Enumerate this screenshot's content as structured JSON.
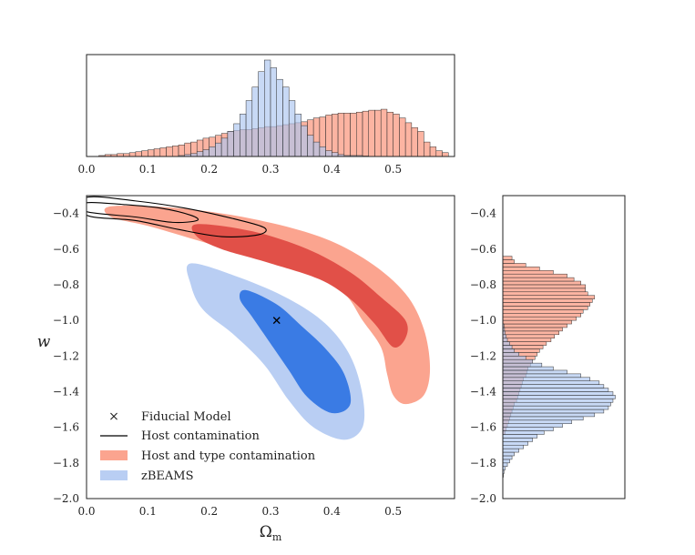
{
  "chart_data": [
    {
      "id": "top_histogram",
      "type": "histogram",
      "xlim": [
        0.0,
        0.6
      ],
      "xticks": [
        "0.0",
        "0.1",
        "0.2",
        "0.3",
        "0.4",
        "0.5"
      ],
      "bin_width": 0.01,
      "series": [
        {
          "name": "Host and type contamination",
          "color": "#fa8c70",
          "bins_start": 0.02,
          "density": [
            0.01,
            0.02,
            0.02,
            0.03,
            0.03,
            0.04,
            0.05,
            0.06,
            0.07,
            0.08,
            0.09,
            0.1,
            0.11,
            0.12,
            0.14,
            0.15,
            0.17,
            0.19,
            0.2,
            0.22,
            0.24,
            0.26,
            0.27,
            0.28,
            0.28,
            0.29,
            0.3,
            0.31,
            0.31,
            0.32,
            0.33,
            0.34,
            0.35,
            0.36,
            0.38,
            0.4,
            0.41,
            0.43,
            0.44,
            0.45,
            0.45,
            0.45,
            0.46,
            0.47,
            0.48,
            0.48,
            0.49,
            0.46,
            0.44,
            0.4,
            0.35,
            0.3,
            0.26,
            0.15,
            0.1,
            0.06,
            0.04
          ]
        },
        {
          "name": "zBEAMS",
          "color": "#aac4f0",
          "bins_start": 0.15,
          "density": [
            0.01,
            0.02,
            0.03,
            0.05,
            0.07,
            0.1,
            0.14,
            0.19,
            0.26,
            0.34,
            0.44,
            0.58,
            0.72,
            0.88,
            1.0,
            0.92,
            0.8,
            0.72,
            0.58,
            0.44,
            0.32,
            0.22,
            0.15,
            0.1,
            0.06,
            0.04,
            0.02,
            0.01,
            0.01,
            0.01,
            0.005
          ]
        }
      ]
    },
    {
      "id": "main_contour",
      "type": "contour",
      "xlabel": "Ω_m",
      "ylabel": "w",
      "xlim": [
        0.0,
        0.6
      ],
      "ylim": [
        -2.0,
        -0.3
      ],
      "xticks": [
        "0.0",
        "0.1",
        "0.2",
        "0.3",
        "0.4",
        "0.5"
      ],
      "yticks": [
        "−2.0",
        "−1.8",
        "−1.6",
        "−1.4",
        "−1.2",
        "−1.0",
        "−0.8",
        "−0.6",
        "−0.4"
      ],
      "fiducial": {
        "omega_m": 0.31,
        "w": -1.0
      },
      "contours": {
        "host_type_outer": [
          [
            0.04,
            -0.36
          ],
          [
            0.15,
            -0.37
          ],
          [
            0.27,
            -0.43
          ],
          [
            0.38,
            -0.53
          ],
          [
            0.46,
            -0.67
          ],
          [
            0.52,
            -0.85
          ],
          [
            0.55,
            -1.05
          ],
          [
            0.56,
            -1.27
          ],
          [
            0.55,
            -1.42
          ],
          [
            0.52,
            -1.47
          ],
          [
            0.5,
            -1.42
          ],
          [
            0.49,
            -1.3
          ],
          [
            0.48,
            -1.15
          ],
          [
            0.45,
            -1.0
          ],
          [
            0.42,
            -0.85
          ],
          [
            0.36,
            -0.73
          ],
          [
            0.27,
            -0.64
          ],
          [
            0.18,
            -0.55
          ],
          [
            0.1,
            -0.47
          ],
          [
            0.04,
            -0.42
          ]
        ],
        "host_type_inner": [
          [
            0.18,
            -0.46
          ],
          [
            0.27,
            -0.5
          ],
          [
            0.36,
            -0.6
          ],
          [
            0.43,
            -0.73
          ],
          [
            0.48,
            -0.87
          ],
          [
            0.52,
            -1.0
          ],
          [
            0.52,
            -1.1
          ],
          [
            0.5,
            -1.15
          ],
          [
            0.47,
            -1.02
          ],
          [
            0.43,
            -0.88
          ],
          [
            0.38,
            -0.77
          ],
          [
            0.3,
            -0.68
          ],
          [
            0.22,
            -0.6
          ],
          [
            0.18,
            -0.53
          ]
        ],
        "zbeams_outer": [
          [
            0.17,
            -0.68
          ],
          [
            0.25,
            -0.76
          ],
          [
            0.33,
            -0.88
          ],
          [
            0.39,
            -1.02
          ],
          [
            0.43,
            -1.2
          ],
          [
            0.45,
            -1.42
          ],
          [
            0.45,
            -1.6
          ],
          [
            0.42,
            -1.67
          ],
          [
            0.37,
            -1.6
          ],
          [
            0.33,
            -1.45
          ],
          [
            0.29,
            -1.25
          ],
          [
            0.24,
            -1.08
          ],
          [
            0.19,
            -0.94
          ],
          [
            0.17,
            -0.8
          ]
        ],
        "zbeams_inner": [
          [
            0.26,
            -0.83
          ],
          [
            0.31,
            -0.91
          ],
          [
            0.35,
            -1.03
          ],
          [
            0.39,
            -1.16
          ],
          [
            0.42,
            -1.3
          ],
          [
            0.43,
            -1.47
          ],
          [
            0.4,
            -1.52
          ],
          [
            0.36,
            -1.43
          ],
          [
            0.33,
            -1.28
          ],
          [
            0.3,
            -1.13
          ],
          [
            0.27,
            -0.98
          ],
          [
            0.25,
            -0.88
          ]
        ],
        "host_outer": [
          [
            0.0,
            -0.31
          ],
          [
            0.08,
            -0.33
          ],
          [
            0.16,
            -0.37
          ],
          [
            0.24,
            -0.43
          ],
          [
            0.29,
            -0.48
          ],
          [
            0.28,
            -0.52
          ],
          [
            0.22,
            -0.53
          ],
          [
            0.15,
            -0.49
          ],
          [
            0.08,
            -0.44
          ],
          [
            0.0,
            -0.41
          ]
        ],
        "host_inner": [
          [
            0.0,
            -0.34
          ],
          [
            0.06,
            -0.35
          ],
          [
            0.12,
            -0.37
          ],
          [
            0.17,
            -0.41
          ],
          [
            0.18,
            -0.44
          ],
          [
            0.14,
            -0.45
          ],
          [
            0.08,
            -0.42
          ],
          [
            0.0,
            -0.39
          ]
        ]
      }
    },
    {
      "id": "right_histogram",
      "type": "histogram",
      "orientation": "horizontal",
      "ylim": [
        -2.0,
        -0.3
      ],
      "yticks": [
        "−2.0",
        "−1.8",
        "−1.6",
        "−1.4",
        "−1.2",
        "−1.0",
        "−0.8",
        "−0.6",
        "−0.4"
      ],
      "bin_width": 0.02,
      "series": [
        {
          "name": "Host and type contamination",
          "color": "#fa8c70",
          "bins_start": -1.64,
          "density": [
            0.02,
            0.03,
            0.04,
            0.05,
            0.06,
            0.07,
            0.08,
            0.09,
            0.1,
            0.12,
            0.13,
            0.14,
            0.15,
            0.16,
            0.17,
            0.18,
            0.2,
            0.21,
            0.22,
            0.24,
            0.26,
            0.28,
            0.3,
            0.32,
            0.35,
            0.38,
            0.42,
            0.45,
            0.49,
            0.52,
            0.56,
            0.6,
            0.64,
            0.68,
            0.7,
            0.74,
            0.76,
            0.78,
            0.8,
            0.74,
            0.72,
            0.72,
            0.68,
            0.62,
            0.56,
            0.44,
            0.32,
            0.2,
            0.1,
            0.08
          ]
        },
        {
          "name": "zBEAMS",
          "color": "#aac4f0",
          "bins_start": -1.88,
          "density": [
            0.005,
            0.01,
            0.02,
            0.04,
            0.06,
            0.08,
            0.1,
            0.14,
            0.18,
            0.22,
            0.26,
            0.3,
            0.36,
            0.44,
            0.52,
            0.6,
            0.7,
            0.8,
            0.88,
            0.92,
            0.94,
            0.96,
            0.98,
            0.96,
            0.92,
            0.88,
            0.84,
            0.76,
            0.68,
            0.56,
            0.44,
            0.34,
            0.26,
            0.2,
            0.14,
            0.1,
            0.08,
            0.06,
            0.04,
            0.03,
            0.02,
            0.015,
            0.01
          ]
        }
      ]
    }
  ],
  "legend": {
    "fiducial_label": "Fiducial Model",
    "host_label": "Host contamination",
    "host_type_label": "Host and type contamination",
    "zbeams_label": "zBEAMS"
  },
  "colors": {
    "host_type_outer": "#fba48f",
    "host_type_inner": "#e15048",
    "zbeams_outer": "#b9cef3",
    "zbeams_inner": "#3a7be4",
    "hist_red": "#fa8c70",
    "hist_blue": "#aac4f0",
    "hist_edge": "#333333",
    "contour_line": "#000000"
  }
}
